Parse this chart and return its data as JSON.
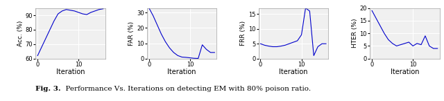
{
  "acc_x": [
    0,
    1,
    2,
    3,
    4,
    5,
    6,
    7,
    8,
    9,
    10,
    11,
    12,
    13,
    14,
    15,
    16
  ],
  "acc_y": [
    62,
    68,
    74,
    80,
    86,
    91,
    93,
    94,
    93.5,
    93,
    92,
    91,
    90.5,
    92,
    93,
    94,
    94.5
  ],
  "far_x": [
    0,
    1,
    2,
    3,
    4,
    5,
    6,
    7,
    8,
    9,
    10,
    11,
    12,
    13,
    14,
    15,
    16
  ],
  "far_y": [
    33,
    28,
    22,
    16,
    11,
    7,
    4,
    2,
    1,
    0.8,
    0.5,
    0.2,
    0.1,
    9,
    6,
    4,
    4
  ],
  "frr_x": [
    0,
    1,
    2,
    3,
    4,
    5,
    6,
    7,
    8,
    9,
    10,
    11,
    12,
    13,
    14,
    15,
    16
  ],
  "frr_y": [
    5,
    4.5,
    4.2,
    4,
    4,
    4.2,
    4.5,
    5,
    5.5,
    6,
    8,
    17,
    16,
    1,
    4,
    5,
    5
  ],
  "hter_x": [
    0,
    1,
    2,
    3,
    4,
    5,
    6,
    7,
    8,
    9,
    10,
    11,
    12,
    13,
    14,
    15,
    16
  ],
  "hter_y": [
    19,
    16,
    13,
    10,
    7.5,
    6,
    5,
    5.5,
    6,
    6.5,
    5,
    6,
    5.5,
    9,
    5,
    4,
    4
  ],
  "acc_ylim": [
    60,
    95
  ],
  "far_ylim": [
    0,
    33
  ],
  "frr_ylim": [
    0,
    17
  ],
  "hter_ylim": [
    0,
    20
  ],
  "acc_yticks": [
    60,
    70,
    80,
    90
  ],
  "far_yticks": [
    0,
    10,
    20,
    30
  ],
  "frr_yticks": [
    0,
    5,
    10,
    15
  ],
  "hter_yticks": [
    0,
    5,
    10,
    15,
    20
  ],
  "xticks": [
    0,
    10
  ],
  "line_color": "#0000CC",
  "caption_bold": "Fig. 3.",
  "caption_normal": "  Performance Vs. Iterations on detecting EM with 80% poison ratio.",
  "ylabel_acc": "Acc. (%)",
  "ylabel_far": "FAR (%)",
  "ylabel_frr": "FRR (%)",
  "ylabel_hter": "HTER (%)",
  "xlabel": "Iteration",
  "bg_color": "#f0f0f0",
  "grid_color": "#ffffff"
}
